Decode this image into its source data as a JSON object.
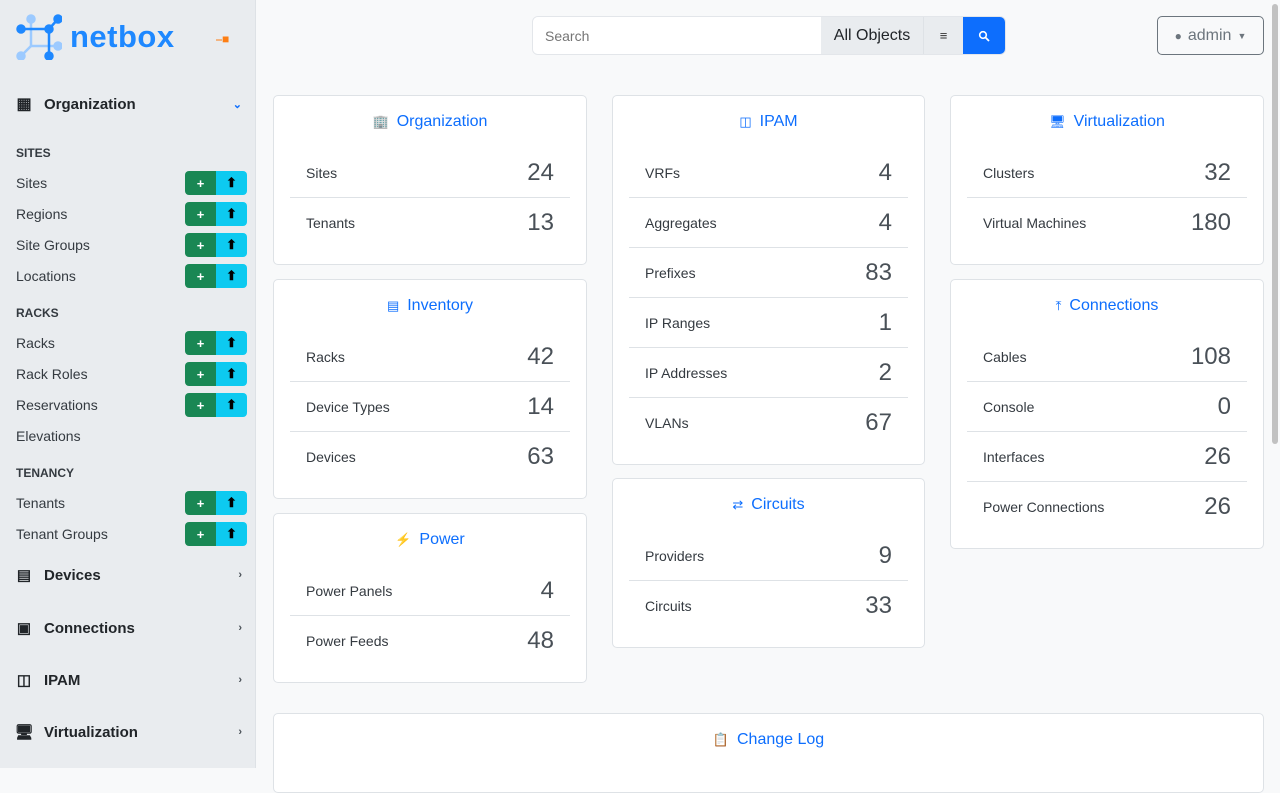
{
  "brand": {
    "name": "netbox",
    "accent": "#0d6efd"
  },
  "sidebar": {
    "groups": [
      {
        "label": "Organization",
        "icon": "building-icon",
        "expanded": true
      },
      {
        "label": "Devices",
        "icon": "server-icon"
      },
      {
        "label": "Connections",
        "icon": "ethernet-icon"
      },
      {
        "label": "IPAM",
        "icon": "ipam-icon"
      },
      {
        "label": "Virtualization",
        "icon": "monitor-icon"
      }
    ],
    "sections": [
      {
        "title": "SITES",
        "items": [
          {
            "label": "Sites",
            "actions": true
          },
          {
            "label": "Regions",
            "actions": true
          },
          {
            "label": "Site Groups",
            "actions": true
          },
          {
            "label": "Locations",
            "actions": true
          }
        ]
      },
      {
        "title": "RACKS",
        "items": [
          {
            "label": "Racks",
            "actions": true
          },
          {
            "label": "Rack Roles",
            "actions": true
          },
          {
            "label": "Reservations",
            "actions": true
          },
          {
            "label": "Elevations",
            "actions": false
          }
        ]
      },
      {
        "title": "TENANCY",
        "items": [
          {
            "label": "Tenants",
            "actions": true
          },
          {
            "label": "Tenant Groups",
            "actions": true
          }
        ]
      }
    ]
  },
  "search": {
    "placeholder": "Search",
    "scope": "All Objects"
  },
  "user": {
    "name": "admin"
  },
  "cards": [
    {
      "title": "Organization",
      "icon": "building-icon",
      "rows": [
        {
          "label": "Sites",
          "count": "24"
        },
        {
          "label": "Tenants",
          "count": "13"
        }
      ]
    },
    {
      "title": "Inventory",
      "icon": "server-icon",
      "rows": [
        {
          "label": "Racks",
          "count": "42"
        },
        {
          "label": "Device Types",
          "count": "14"
        },
        {
          "label": "Devices",
          "count": "63"
        }
      ]
    },
    {
      "title": "Power",
      "icon": "lightning-icon",
      "rows": [
        {
          "label": "Power Panels",
          "count": "4"
        },
        {
          "label": "Power Feeds",
          "count": "48"
        }
      ]
    },
    {
      "title": "IPAM",
      "icon": "ipam-icon",
      "rows": [
        {
          "label": "VRFs",
          "count": "4"
        },
        {
          "label": "Aggregates",
          "count": "4"
        },
        {
          "label": "Prefixes",
          "count": "83"
        },
        {
          "label": "IP Ranges",
          "count": "1"
        },
        {
          "label": "IP Addresses",
          "count": "2"
        },
        {
          "label": "VLANs",
          "count": "67"
        }
      ]
    },
    {
      "title": "Circuits",
      "icon": "sliders-icon",
      "rows": [
        {
          "label": "Providers",
          "count": "9"
        },
        {
          "label": "Circuits",
          "count": "33"
        }
      ]
    },
    {
      "title": "Virtualization",
      "icon": "monitor-icon",
      "rows": [
        {
          "label": "Clusters",
          "count": "32"
        },
        {
          "label": "Virtual Machines",
          "count": "180"
        }
      ]
    },
    {
      "title": "Connections",
      "icon": "cable-icon",
      "rows": [
        {
          "label": "Cables",
          "count": "108"
        },
        {
          "label": "Console",
          "count": "0"
        },
        {
          "label": "Interfaces",
          "count": "26"
        },
        {
          "label": "Power Connections",
          "count": "26"
        }
      ]
    },
    {
      "title": "Change Log",
      "icon": "clipboard-clock-icon",
      "rows": []
    }
  ]
}
